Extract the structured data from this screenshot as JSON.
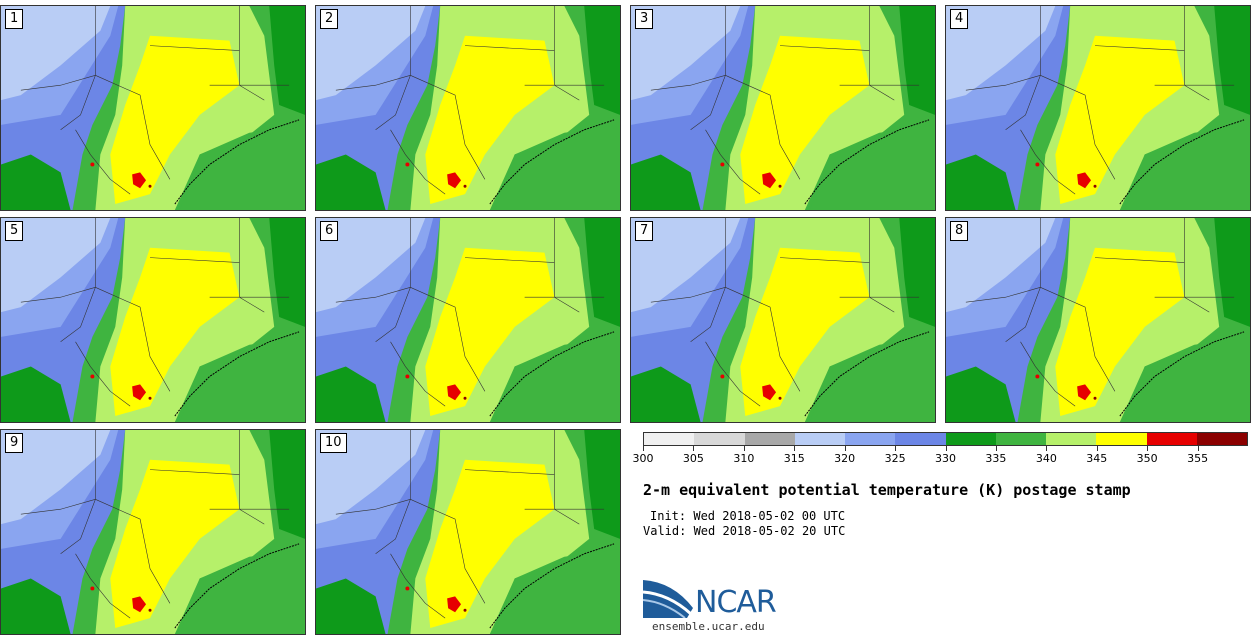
{
  "panels": [
    {
      "label": "1"
    },
    {
      "label": "2"
    },
    {
      "label": "3"
    },
    {
      "label": "4"
    },
    {
      "label": "5"
    },
    {
      "label": "6"
    },
    {
      "label": "7"
    },
    {
      "label": "8"
    },
    {
      "label": "9"
    },
    {
      "label": "10"
    }
  ],
  "colorbar": {
    "colors": [
      "#f0f0f0",
      "#d8d8d8",
      "#a8a8a8",
      "#b9cdf5",
      "#8aa5f0",
      "#6c86e6",
      "#0e9a1a",
      "#3fb440",
      "#b6f06a",
      "#ffff00",
      "#e60000",
      "#8b0000"
    ],
    "tick_labels": [
      "300",
      "305",
      "310",
      "315",
      "320",
      "325",
      "330",
      "335",
      "340",
      "345",
      "350",
      "355"
    ]
  },
  "title": "2-m equivalent potential temperature (K) postage stamp",
  "init": "Init: Wed 2018-05-02 00 UTC",
  "valid": "Valid: Wed 2018-05-02 20 UTC",
  "logo": {
    "text": "NCAR",
    "url": "ensemble.ucar.edu",
    "color": "#1f5c9a"
  }
}
